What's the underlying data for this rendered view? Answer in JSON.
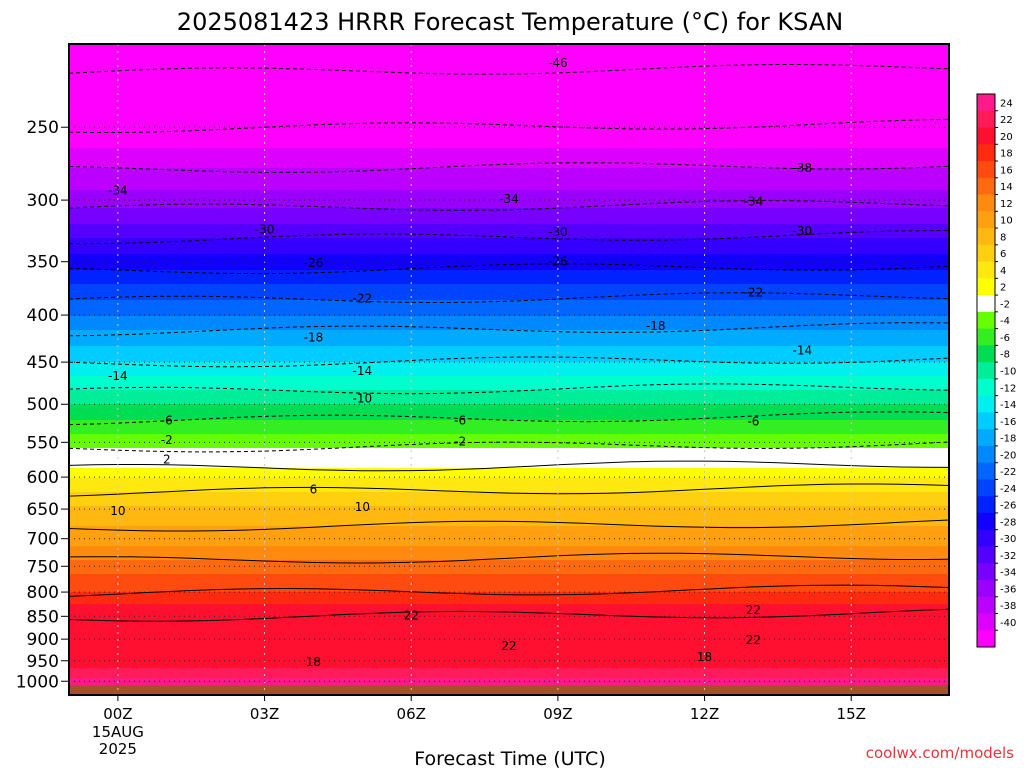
{
  "chart_data": {
    "type": "heatmap",
    "title": "2025081423 HRRR Forecast Temperature (°C) for KSAN",
    "xlabel": "Forecast Time (UTC)",
    "ylabel": "",
    "x_axis": {
      "range_hours": [
        -1,
        17
      ],
      "ticks": [
        {
          "hour": 0,
          "label": "00Z",
          "sub": [
            "15AUG",
            "2025"
          ]
        },
        {
          "hour": 3,
          "label": "03Z"
        },
        {
          "hour": 6,
          "label": "06Z"
        },
        {
          "hour": 9,
          "label": "09Z"
        },
        {
          "hour": 12,
          "label": "12Z"
        },
        {
          "hour": 15,
          "label": "15Z"
        }
      ]
    },
    "y_axis": {
      "units": "hPa",
      "scale": "log",
      "inverted": true,
      "range": [
        1035,
        203
      ],
      "ticks": [
        250,
        300,
        350,
        400,
        450,
        500,
        550,
        600,
        650,
        700,
        750,
        800,
        850,
        900,
        950,
        1000
      ]
    },
    "colorbar": {
      "labels": [
        24,
        22,
        20,
        18,
        16,
        14,
        12,
        10,
        8,
        6,
        4,
        2,
        -2,
        -4,
        -6,
        -8,
        -10,
        -12,
        -14,
        -16,
        -18,
        -20,
        -22,
        -24,
        -26,
        -28,
        -30,
        -32,
        -34,
        -36,
        -38,
        -40
      ],
      "colors": [
        "#ff1a8c",
        "#ff1a5a",
        "#ff1030",
        "#ff2a10",
        "#ff4a10",
        "#ff6a10",
        "#ff8a10",
        "#ffa010",
        "#ffb810",
        "#ffd010",
        "#ffe810",
        "#ffff00",
        "#ffffff",
        "#66ff00",
        "#33ee22",
        "#00dd55",
        "#00ee99",
        "#00ffcc",
        "#00f0f0",
        "#00ccff",
        "#00aaff",
        "#0088ff",
        "#0066ff",
        "#0044ff",
        "#0022ff",
        "#1100ff",
        "#3300ff",
        "#5500ff",
        "#7700ff",
        "#9900ff",
        "#bb00ff",
        "#dd00ff",
        "#ff00ff"
      ]
    },
    "temperature_profile": [
      {
        "p": 1000,
        "t": 25
      },
      {
        "p": 950,
        "t": 20
      },
      {
        "p": 900,
        "t": 22
      },
      {
        "p": 850,
        "t": 22
      },
      {
        "p": 800,
        "t": 18
      },
      {
        "p": 750,
        "t": 15
      },
      {
        "p": 700,
        "t": 11
      },
      {
        "p": 650,
        "t": 8.5
      },
      {
        "p": 600,
        "t": 4
      },
      {
        "p": 550,
        "t": -3
      },
      {
        "p": 500,
        "t": -8
      },
      {
        "p": 450,
        "t": -14
      },
      {
        "p": 400,
        "t": -20
      },
      {
        "p": 350,
        "t": -27
      },
      {
        "p": 300,
        "t": -35
      },
      {
        "p": 250,
        "t": -42
      },
      {
        "p": 203,
        "t": -48
      }
    ],
    "contour_labels": [
      {
        "hour": 9,
        "p": 213,
        "text": "-46"
      },
      {
        "hour": 14,
        "p": 277,
        "text": "-38"
      },
      {
        "hour": 0,
        "p": 293,
        "text": "-34"
      },
      {
        "hour": 8,
        "p": 299,
        "text": "-34"
      },
      {
        "hour": 13,
        "p": 301,
        "text": "-34"
      },
      {
        "hour": 3,
        "p": 323,
        "text": "-30"
      },
      {
        "hour": 9,
        "p": 325,
        "text": "-30"
      },
      {
        "hour": 14,
        "p": 324,
        "text": "-30"
      },
      {
        "hour": 4,
        "p": 351,
        "text": "-26"
      },
      {
        "hour": 9,
        "p": 350,
        "text": "-26"
      },
      {
        "hour": 5,
        "p": 384,
        "text": "-22"
      },
      {
        "hour": 13,
        "p": 378,
        "text": "-22"
      },
      {
        "hour": 11,
        "p": 411,
        "text": "-18"
      },
      {
        "hour": 4,
        "p": 423,
        "text": "-18"
      },
      {
        "hour": 14,
        "p": 437,
        "text": "-14"
      },
      {
        "hour": 5,
        "p": 460,
        "text": "-14"
      },
      {
        "hour": 0,
        "p": 466,
        "text": "-14"
      },
      {
        "hour": 5,
        "p": 493,
        "text": "-10"
      },
      {
        "hour": 1,
        "p": 521,
        "text": "-6"
      },
      {
        "hour": 7,
        "p": 521,
        "text": "-6"
      },
      {
        "hour": 13,
        "p": 522,
        "text": "-6"
      },
      {
        "hour": 1,
        "p": 547,
        "text": "-2"
      },
      {
        "hour": 7,
        "p": 549,
        "text": "-2"
      },
      {
        "hour": 1,
        "p": 574,
        "text": "2"
      },
      {
        "hour": 4,
        "p": 619,
        "text": "6"
      },
      {
        "hour": 0,
        "p": 653,
        "text": "10"
      },
      {
        "hour": 5,
        "p": 647,
        "text": "10"
      },
      {
        "hour": 6,
        "p": 848,
        "text": "22"
      },
      {
        "hour": 13,
        "p": 837,
        "text": "22"
      },
      {
        "hour": 13,
        "p": 902,
        "text": "22"
      },
      {
        "hour": 8,
        "p": 916,
        "text": "22"
      },
      {
        "hour": 12,
        "p": 941,
        "text": "18"
      },
      {
        "hour": 4,
        "p": 953,
        "text": "18"
      }
    ],
    "grid": true,
    "legend": "colorbar-right"
  },
  "credit": "coolwx.com/models"
}
